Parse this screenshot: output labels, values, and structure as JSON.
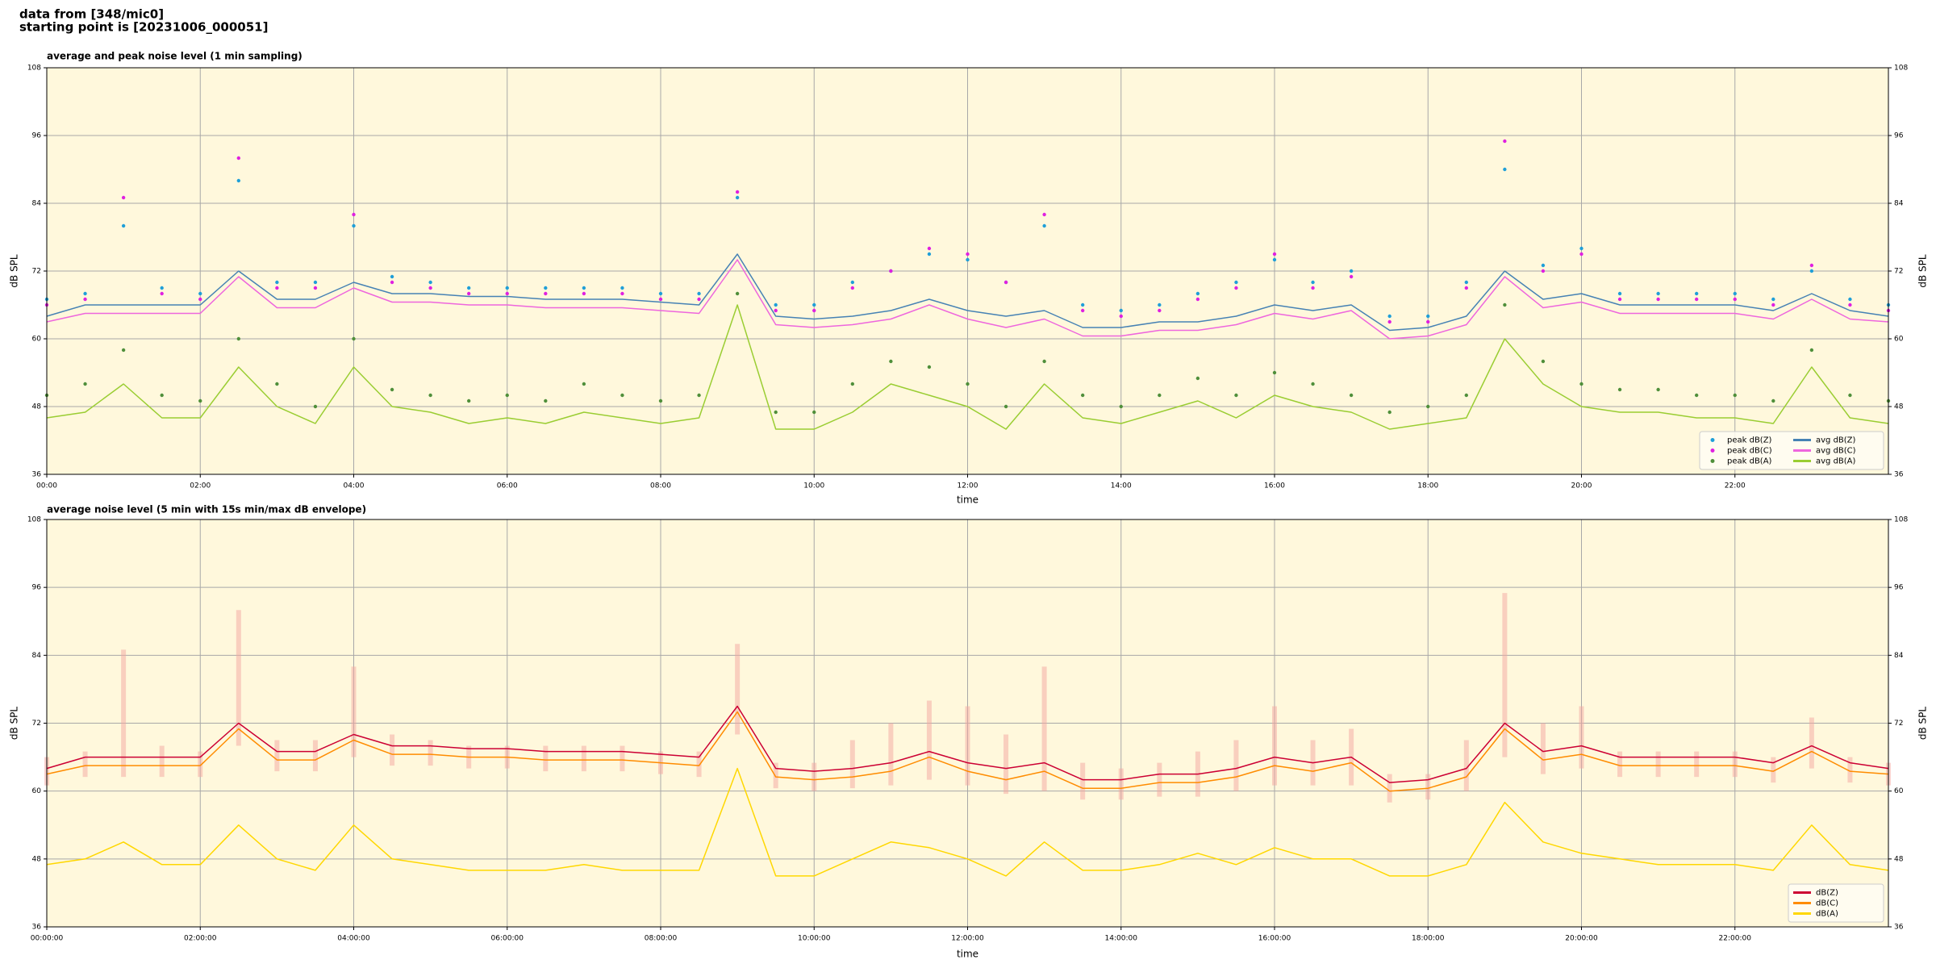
{
  "header": {
    "lines": [
      "data from [348/mic0]",
      "starting point is [20231006_000051]"
    ]
  },
  "chart_data": [
    {
      "type": "line",
      "title": "average and peak noise level (1 min sampling)",
      "x_label": "time",
      "y_label": "dB SPL",
      "background": "#fff8dc",
      "grid": true,
      "legend": "lower right",
      "legend_columns": 2,
      "xlim": [
        0,
        24
      ],
      "ylim": [
        36,
        108
      ],
      "xticks": [
        {
          "value": 0,
          "label": "00:00"
        },
        {
          "value": 2,
          "label": "02:00"
        },
        {
          "value": 4,
          "label": "04:00"
        },
        {
          "value": 6,
          "label": "06:00"
        },
        {
          "value": 8,
          "label": "08:00"
        },
        {
          "value": 10,
          "label": "10:00"
        },
        {
          "value": 12,
          "label": "12:00"
        },
        {
          "value": 14,
          "label": "14:00"
        },
        {
          "value": 16,
          "label": "16:00"
        },
        {
          "value": 18,
          "label": "18:00"
        },
        {
          "value": 20,
          "label": "20:00"
        },
        {
          "value": 22,
          "label": "22:00"
        }
      ],
      "yticks": [
        36,
        48,
        60,
        72,
        84,
        96,
        108
      ],
      "x": [
        0,
        0.5,
        1,
        1.5,
        2,
        2.5,
        3,
        3.5,
        4,
        4.5,
        5,
        5.5,
        6,
        6.5,
        7,
        7.5,
        8,
        8.5,
        9,
        9.5,
        10,
        10.5,
        11,
        11.5,
        12,
        12.5,
        13,
        13.5,
        14,
        14.5,
        15,
        15.5,
        16,
        16.5,
        17,
        17.5,
        18,
        18.5,
        19,
        19.5,
        20,
        20.5,
        21,
        21.5,
        22,
        22.5,
        23,
        23.5,
        24
      ],
      "series": [
        {
          "name": "peak dB(Z)",
          "kind": "markers",
          "color": "#1f9fd8",
          "values": [
            67,
            68,
            80,
            69,
            68,
            88,
            70,
            70,
            80,
            71,
            70,
            69,
            69,
            69,
            69,
            69,
            68,
            68,
            85,
            66,
            66,
            70,
            72,
            75,
            74,
            70,
            80,
            66,
            65,
            66,
            68,
            70,
            74,
            70,
            72,
            64,
            64,
            70,
            90,
            73,
            76,
            68,
            68,
            68,
            68,
            67,
            72,
            67,
            66
          ]
        },
        {
          "name": "peak dB(C)",
          "kind": "markers",
          "color": "#e020e0",
          "values": [
            66,
            67,
            85,
            68,
            67,
            92,
            69,
            69,
            82,
            70,
            69,
            68,
            68,
            68,
            68,
            68,
            67,
            67,
            86,
            65,
            65,
            69,
            72,
            76,
            75,
            70,
            82,
            65,
            64,
            65,
            67,
            69,
            75,
            69,
            71,
            63,
            63,
            69,
            95,
            72,
            75,
            67,
            67,
            67,
            67,
            66,
            73,
            66,
            65
          ]
        },
        {
          "name": "peak dB(A)",
          "kind": "markers",
          "color": "#4f8f3a",
          "values": [
            50,
            52,
            58,
            50,
            49,
            60,
            52,
            48,
            60,
            51,
            50,
            49,
            50,
            49,
            52,
            50,
            49,
            50,
            68,
            47,
            47,
            52,
            56,
            55,
            52,
            48,
            56,
            50,
            48,
            50,
            53,
            50,
            54,
            52,
            50,
            47,
            48,
            50,
            66,
            56,
            52,
            51,
            51,
            50,
            50,
            49,
            58,
            50,
            49
          ]
        },
        {
          "name": "avg dB(Z)",
          "kind": "line",
          "color": "#4682b4",
          "values": [
            64,
            66,
            66,
            66,
            66,
            72,
            67,
            67,
            70,
            68,
            68,
            67.5,
            67.5,
            67,
            67,
            67,
            66.5,
            66,
            75,
            64,
            63.5,
            64,
            65,
            67,
            65,
            64,
            65,
            62,
            62,
            63,
            63,
            64,
            66,
            65,
            66,
            61.5,
            62,
            64,
            72,
            67,
            68,
            66,
            66,
            66,
            66,
            65,
            68,
            65,
            64
          ]
        },
        {
          "name": "avg dB(C)",
          "kind": "line",
          "color": "#ee66dd",
          "values": [
            63,
            64.5,
            64.5,
            64.5,
            64.5,
            71,
            65.5,
            65.5,
            69,
            66.5,
            66.5,
            66,
            66,
            65.5,
            65.5,
            65.5,
            65,
            64.5,
            74,
            62.5,
            62,
            62.5,
            63.5,
            66,
            63.5,
            62,
            63.5,
            60.5,
            60.5,
            61.5,
            61.5,
            62.5,
            64.5,
            63.5,
            65,
            60,
            60.5,
            62.5,
            71,
            65.5,
            66.5,
            64.5,
            64.5,
            64.5,
            64.5,
            63.5,
            67,
            63.5,
            63
          ]
        },
        {
          "name": "avg dB(A)",
          "kind": "line",
          "color": "#9acd32",
          "values": [
            46,
            47,
            52,
            46,
            46,
            55,
            48,
            45,
            55,
            48,
            47,
            45,
            46,
            45,
            47,
            46,
            45,
            46,
            66,
            44,
            44,
            47,
            52,
            50,
            48,
            44,
            52,
            46,
            45,
            47,
            49,
            46,
            50,
            48,
            47,
            44,
            45,
            46,
            60,
            52,
            48,
            47,
            47,
            46,
            46,
            45,
            55,
            46,
            45
          ]
        }
      ]
    },
    {
      "type": "line",
      "title": "average noise level (5 min with 15s min/max dB envelope)",
      "x_label": "time",
      "y_label": "dB SPL",
      "background": "#fff8dc",
      "grid": true,
      "legend": "lower right",
      "legend_columns": 1,
      "xlim": [
        0,
        24
      ],
      "ylim": [
        36,
        108
      ],
      "xticks": [
        {
          "value": 0,
          "label": "00:00:00"
        },
        {
          "value": 2,
          "label": "02:00:00"
        },
        {
          "value": 4,
          "label": "04:00:00"
        },
        {
          "value": 6,
          "label": "06:00:00"
        },
        {
          "value": 8,
          "label": "08:00:00"
        },
        {
          "value": 10,
          "label": "10:00:00"
        },
        {
          "value": 12,
          "label": "12:00:00"
        },
        {
          "value": 14,
          "label": "14:00:00"
        },
        {
          "value": 16,
          "label": "16:00:00"
        },
        {
          "value": 18,
          "label": "18:00:00"
        },
        {
          "value": 20,
          "label": "20:00:00"
        },
        {
          "value": 22,
          "label": "22:00:00"
        }
      ],
      "yticks": [
        36,
        48,
        60,
        72,
        84,
        96,
        108
      ],
      "x": [
        0,
        0.5,
        1,
        1.5,
        2,
        2.5,
        3,
        3.5,
        4,
        4.5,
        5,
        5.5,
        6,
        6.5,
        7,
        7.5,
        8,
        8.5,
        9,
        9.5,
        10,
        10.5,
        11,
        11.5,
        12,
        12.5,
        13,
        13.5,
        14,
        14.5,
        15,
        15.5,
        16,
        16.5,
        17,
        17.5,
        18,
        18.5,
        19,
        19.5,
        20,
        20.5,
        21,
        21.5,
        22,
        22.5,
        23,
        23.5,
        24
      ],
      "envelope": {
        "color": "#f4a6a0",
        "low": [
          61,
          62.5,
          62.5,
          62.5,
          62.5,
          68,
          63.5,
          63.5,
          66,
          64.5,
          64.5,
          64,
          64,
          63.5,
          63.5,
          63.5,
          63,
          62.5,
          70,
          60.5,
          60,
          60.5,
          61,
          62,
          61,
          59.5,
          60,
          58.5,
          58.5,
          59,
          59,
          60,
          61,
          61,
          61,
          58,
          58.5,
          60,
          66,
          63,
          64,
          62.5,
          62.5,
          62.5,
          62.5,
          61.5,
          64,
          61.5,
          61
        ],
        "high": [
          66,
          67,
          85,
          68,
          67,
          92,
          69,
          69,
          82,
          70,
          69,
          68,
          68,
          68,
          68,
          68,
          67,
          67,
          86,
          65,
          65,
          69,
          72,
          76,
          75,
          70,
          82,
          65,
          64,
          65,
          67,
          69,
          75,
          69,
          71,
          63,
          63,
          69,
          95,
          72,
          75,
          67,
          67,
          67,
          67,
          66,
          73,
          66,
          65
        ]
      },
      "series": [
        {
          "name": "dB(Z)",
          "kind": "line",
          "color": "#cc0033",
          "values": [
            64,
            66,
            66,
            66,
            66,
            72,
            67,
            67,
            70,
            68,
            68,
            67.5,
            67.5,
            67,
            67,
            67,
            66.5,
            66,
            75,
            64,
            63.5,
            64,
            65,
            67,
            65,
            64,
            65,
            62,
            62,
            63,
            63,
            64,
            66,
            65,
            66,
            61.5,
            62,
            64,
            72,
            67,
            68,
            66,
            66,
            66,
            66,
            65,
            68,
            65,
            64
          ]
        },
        {
          "name": "dB(C)",
          "kind": "line",
          "color": "#ff8c00",
          "values": [
            63,
            64.5,
            64.5,
            64.5,
            64.5,
            71,
            65.5,
            65.5,
            69,
            66.5,
            66.5,
            66,
            66,
            65.5,
            65.5,
            65.5,
            65,
            64.5,
            74,
            62.5,
            62,
            62.5,
            63.5,
            66,
            63.5,
            62,
            63.5,
            60.5,
            60.5,
            61.5,
            61.5,
            62.5,
            64.5,
            63.5,
            65,
            60,
            60.5,
            62.5,
            71,
            65.5,
            66.5,
            64.5,
            64.5,
            64.5,
            64.5,
            63.5,
            67,
            63.5,
            63
          ]
        },
        {
          "name": "dB(A)",
          "kind": "line",
          "color": "#ffd700",
          "values": [
            47,
            48,
            51,
            47,
            47,
            54,
            48,
            46,
            54,
            48,
            47,
            46,
            46,
            46,
            47,
            46,
            46,
            46,
            64,
            45,
            45,
            48,
            51,
            50,
            48,
            45,
            51,
            46,
            46,
            47,
            49,
            47,
            50,
            48,
            48,
            45,
            45,
            47,
            58,
            51,
            49,
            48,
            47,
            47,
            47,
            46,
            54,
            47,
            46
          ]
        }
      ]
    }
  ]
}
